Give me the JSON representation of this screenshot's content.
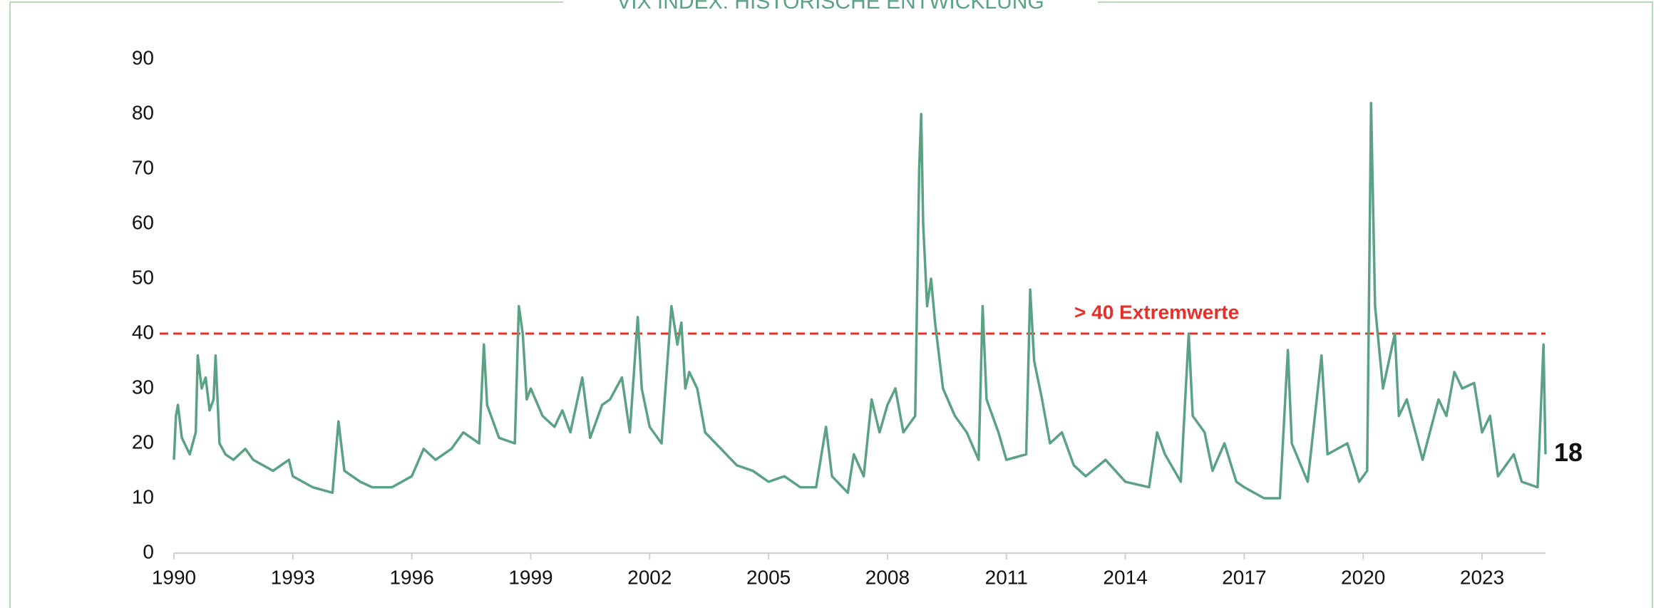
{
  "chart_data": {
    "type": "line",
    "title": "VIX INDEX: HISTORISCHE ENTWICKLUNG",
    "color": "#5aa283",
    "x": [
      1990.0,
      1990.05,
      1990.1,
      1990.2,
      1990.4,
      1990.55,
      1990.6,
      1990.7,
      1990.8,
      1990.9,
      1991.0,
      1991.05,
      1991.15,
      1991.3,
      1991.5,
      1991.8,
      1992.0,
      1992.5,
      1992.9,
      1993.0,
      1993.5,
      1994.0,
      1994.15,
      1994.3,
      1994.7,
      1995.0,
      1995.5,
      1996.0,
      1996.3,
      1996.6,
      1997.0,
      1997.3,
      1997.7,
      1997.82,
      1997.9,
      1998.2,
      1998.6,
      1998.7,
      1998.8,
      1998.9,
      1999.0,
      1999.3,
      1999.6,
      1999.8,
      2000.0,
      2000.3,
      2000.5,
      2000.8,
      2001.0,
      2001.3,
      2001.5,
      2001.7,
      2001.8,
      2002.0,
      2002.3,
      2002.55,
      2002.7,
      2002.8,
      2002.9,
      2003.0,
      2003.2,
      2003.4,
      2003.8,
      2004.2,
      2004.6,
      2005.0,
      2005.4,
      2005.8,
      2006.2,
      2006.45,
      2006.6,
      2007.0,
      2007.15,
      2007.4,
      2007.6,
      2007.8,
      2008.0,
      2008.2,
      2008.4,
      2008.7,
      2008.8,
      2008.85,
      2008.9,
      2009.0,
      2009.1,
      2009.2,
      2009.4,
      2009.7,
      2010.0,
      2010.3,
      2010.4,
      2010.5,
      2010.8,
      2011.0,
      2011.5,
      2011.6,
      2011.7,
      2011.9,
      2012.1,
      2012.4,
      2012.7,
      2013.0,
      2013.5,
      2014.0,
      2014.6,
      2014.8,
      2015.0,
      2015.4,
      2015.6,
      2015.7,
      2016.0,
      2016.2,
      2016.5,
      2016.8,
      2017.0,
      2017.5,
      2017.9,
      2018.1,
      2018.2,
      2018.6,
      2018.95,
      2019.1,
      2019.6,
      2019.9,
      2020.1,
      2020.2,
      2020.3,
      2020.5,
      2020.8,
      2020.9,
      2021.1,
      2021.5,
      2021.9,
      2022.1,
      2022.3,
      2022.5,
      2022.8,
      2023.0,
      2023.2,
      2023.4,
      2023.8,
      2024.0,
      2024.4,
      2024.55,
      2024.6
    ],
    "values": [
      17,
      25,
      27,
      21,
      18,
      22,
      36,
      30,
      32,
      26,
      28,
      36,
      20,
      18,
      17,
      19,
      17,
      15,
      17,
      14,
      12,
      11,
      24,
      15,
      13,
      12,
      12,
      14,
      19,
      17,
      19,
      22,
      20,
      38,
      27,
      21,
      20,
      45,
      40,
      28,
      30,
      25,
      23,
      26,
      22,
      32,
      21,
      27,
      28,
      32,
      22,
      43,
      30,
      23,
      20,
      45,
      38,
      42,
      30,
      33,
      30,
      22,
      19,
      16,
      15,
      13,
      14,
      12,
      12,
      23,
      14,
      11,
      18,
      14,
      28,
      22,
      27,
      30,
      22,
      25,
      70,
      80,
      60,
      45,
      50,
      42,
      30,
      25,
      22,
      17,
      45,
      28,
      22,
      17,
      18,
      48,
      35,
      28,
      20,
      22,
      16,
      14,
      17,
      13,
      12,
      22,
      18,
      13,
      40,
      25,
      22,
      15,
      20,
      13,
      12,
      10,
      10,
      37,
      20,
      13,
      36,
      18,
      20,
      13,
      15,
      82,
      45,
      30,
      40,
      25,
      28,
      17,
      28,
      25,
      33,
      30,
      31,
      22,
      25,
      14,
      18,
      13,
      12,
      38,
      18
    ],
    "xlim": [
      1990,
      2024.6
    ],
    "xticks": [
      1990,
      1993,
      1996,
      1999,
      2002,
      2005,
      2008,
      2011,
      2014,
      2017,
      2020,
      2023
    ],
    "ylim": [
      0,
      90
    ],
    "yticks": [
      0,
      10,
      20,
      30,
      40,
      50,
      60,
      70,
      80,
      90
    ],
    "reference_line": {
      "value": 40,
      "label": "> 40 Extremwerte",
      "color": "#e8302a"
    }
  }
}
